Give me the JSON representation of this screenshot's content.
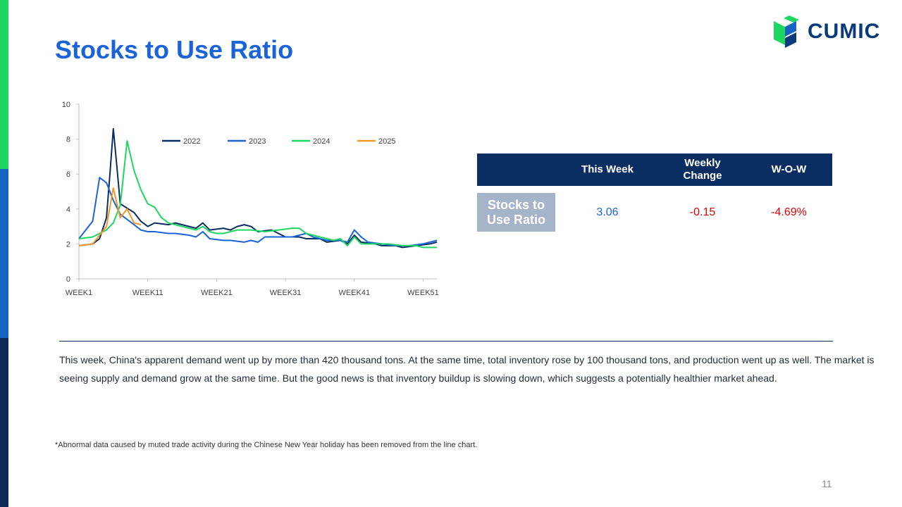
{
  "slide": {
    "title": "Stocks to Use Ratio",
    "logo_text": "CUMIC",
    "page_number": "11",
    "footnote": "*Abnormal data caused by muted trade activity during the Chinese New Year holiday has been removed from the line chart.",
    "commentary": "This week, China's apparent demand went up by more than 420 thousand tons. At the same time, total inventory rose by 100 thousand tons, and production went up as well. The market is seeing supply and demand grow at the same time. But the good news is that inventory buildup is slowing down, which suggests a potentially healthier market ahead."
  },
  "table": {
    "headers": [
      "",
      "This Week",
      "Weekly Change",
      "W-O-W"
    ],
    "row_label": "Stocks to Use Ratio",
    "this_week": "3.06",
    "weekly_change": "-0.15",
    "wow": "-4.69%"
  },
  "colors": {
    "title": "#1a64d8",
    "table_header": "#0a2d62",
    "row_label_bg": "#a5b4c8",
    "value_blue": "#1a64d8",
    "value_red": "#e00000"
  },
  "chart_data": {
    "type": "line",
    "title": "",
    "xlabel": "",
    "ylabel": "",
    "ylim": [
      0,
      10
    ],
    "yticks": [
      0,
      2,
      4,
      6,
      8,
      10
    ],
    "xlim": [
      1,
      53
    ],
    "xticks": [
      1,
      11,
      21,
      31,
      41,
      51
    ],
    "xtick_labels": [
      "WEEK1",
      "WEEK11",
      "WEEK21",
      "WEEK31",
      "WEEK41",
      "WEEK51"
    ],
    "legend_position": "top",
    "grid": false,
    "series": [
      {
        "name": "2022",
        "color": "#0a2d62",
        "points": [
          [
            1,
            1.9
          ],
          [
            3,
            2.0
          ],
          [
            4,
            2.3
          ],
          [
            5,
            3.5
          ],
          [
            5.5,
            6.0
          ],
          [
            6,
            8.6
          ],
          [
            6.5,
            6.5
          ],
          [
            7,
            4.3
          ],
          [
            9,
            3.8
          ],
          [
            10,
            3.3
          ],
          [
            11,
            3.0
          ],
          [
            12,
            3.2
          ],
          [
            14,
            3.1
          ],
          [
            15,
            3.2
          ],
          [
            17,
            3.0
          ],
          [
            18,
            2.9
          ],
          [
            19,
            3.2
          ],
          [
            20,
            2.8
          ],
          [
            22,
            2.9
          ],
          [
            23,
            2.8
          ],
          [
            24,
            3.0
          ],
          [
            25,
            3.1
          ],
          [
            26,
            3.0
          ],
          [
            27,
            2.7
          ],
          [
            29,
            2.8
          ],
          [
            31,
            2.4
          ],
          [
            33,
            2.4
          ],
          [
            34,
            2.3
          ],
          [
            36,
            2.3
          ],
          [
            37,
            2.1
          ],
          [
            39,
            2.2
          ],
          [
            40,
            2.0
          ],
          [
            41,
            2.5
          ],
          [
            42,
            2.1
          ],
          [
            44,
            2.0
          ],
          [
            45,
            1.9
          ],
          [
            47,
            1.9
          ],
          [
            48,
            1.8
          ],
          [
            50,
            1.9
          ],
          [
            52,
            2.0
          ],
          [
            53,
            2.1
          ]
        ]
      },
      {
        "name": "2023",
        "color": "#1a64d8",
        "points": [
          [
            1,
            2.3
          ],
          [
            3,
            3.3
          ],
          [
            4,
            5.8
          ],
          [
            5,
            5.5
          ],
          [
            6,
            4.5
          ],
          [
            7,
            3.7
          ],
          [
            9,
            3.1
          ],
          [
            10,
            2.8
          ],
          [
            11,
            2.7
          ],
          [
            12,
            2.7
          ],
          [
            14,
            2.6
          ],
          [
            15,
            2.6
          ],
          [
            17,
            2.5
          ],
          [
            18,
            2.4
          ],
          [
            19,
            2.7
          ],
          [
            20,
            2.3
          ],
          [
            22,
            2.2
          ],
          [
            23,
            2.2
          ],
          [
            25,
            2.1
          ],
          [
            26,
            2.2
          ],
          [
            27,
            2.1
          ],
          [
            28,
            2.4
          ],
          [
            30,
            2.4
          ],
          [
            32,
            2.4
          ],
          [
            34,
            2.6
          ],
          [
            35,
            2.4
          ],
          [
            37,
            2.2
          ],
          [
            39,
            2.2
          ],
          [
            40,
            2.1
          ],
          [
            41,
            2.8
          ],
          [
            42,
            2.4
          ],
          [
            43,
            2.1
          ],
          [
            45,
            2.0
          ],
          [
            47,
            1.9
          ],
          [
            49,
            1.9
          ],
          [
            51,
            2.0
          ],
          [
            52,
            2.1
          ],
          [
            53,
            2.2
          ]
        ]
      },
      {
        "name": "2024",
        "color": "#1ed760",
        "points": [
          [
            1,
            2.3
          ],
          [
            3,
            2.4
          ],
          [
            5,
            2.8
          ],
          [
            6,
            3.2
          ],
          [
            7,
            4.2
          ],
          [
            8,
            7.9
          ],
          [
            9,
            6.2
          ],
          [
            10,
            5.1
          ],
          [
            11,
            4.3
          ],
          [
            12,
            4.1
          ],
          [
            13,
            3.5
          ],
          [
            14,
            3.2
          ],
          [
            16,
            3.0
          ],
          [
            18,
            2.8
          ],
          [
            19,
            3.0
          ],
          [
            20,
            2.7
          ],
          [
            21,
            2.6
          ],
          [
            22,
            2.6
          ],
          [
            23,
            2.7
          ],
          [
            24,
            2.8
          ],
          [
            26,
            2.8
          ],
          [
            28,
            2.7
          ],
          [
            30,
            2.8
          ],
          [
            32,
            2.9
          ],
          [
            33,
            2.9
          ],
          [
            34,
            2.6
          ],
          [
            36,
            2.4
          ],
          [
            38,
            2.2
          ],
          [
            39,
            2.3
          ],
          [
            40,
            1.9
          ],
          [
            41,
            2.4
          ],
          [
            42,
            2.0
          ],
          [
            44,
            2.0
          ],
          [
            46,
            2.0
          ],
          [
            48,
            1.9
          ],
          [
            50,
            1.9
          ],
          [
            51,
            1.8
          ],
          [
            53,
            1.8
          ]
        ]
      },
      {
        "name": "2025",
        "color": "#f0962a",
        "points": [
          [
            1,
            1.9
          ],
          [
            3,
            2.0
          ],
          [
            4,
            2.5
          ],
          [
            5,
            3.0
          ],
          [
            6,
            5.2
          ],
          [
            7,
            3.5
          ],
          [
            8,
            4.0
          ],
          [
            9,
            3.2
          ],
          [
            10,
            3.1
          ]
        ]
      }
    ]
  }
}
